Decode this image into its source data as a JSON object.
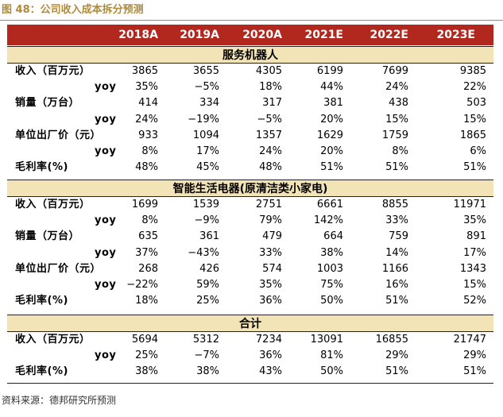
{
  "title": "图 48：公司收入成本拆分预测",
  "columns": [
    "2018A",
    "2019A",
    "2020A",
    "2021E",
    "2022E",
    "2023E"
  ],
  "sections": [
    {
      "name": "服务机器人",
      "rows": [
        {
          "label": "收入（百万元）",
          "sub": false,
          "values": [
            "3865",
            "3655",
            "4305",
            "6199",
            "7699",
            "9385"
          ]
        },
        {
          "label": "yoy",
          "sub": true,
          "values": [
            "35%",
            "−5%",
            "18%",
            "44%",
            "24%",
            "22%"
          ]
        },
        {
          "label": "销量（万台）",
          "sub": false,
          "values": [
            "414",
            "334",
            "317",
            "381",
            "438",
            "503"
          ]
        },
        {
          "label": "yoy",
          "sub": true,
          "values": [
            "24%",
            "−19%",
            "−5%",
            "20%",
            "15%",
            "15%"
          ]
        },
        {
          "label": "单位出厂价（元）",
          "sub": false,
          "values": [
            "933",
            "1094",
            "1357",
            "1629",
            "1759",
            "1865"
          ]
        },
        {
          "label": "yoy",
          "sub": true,
          "values": [
            "8%",
            "17%",
            "24%",
            "20%",
            "8%",
            "6%"
          ]
        },
        {
          "label": "毛利率(%)",
          "sub": false,
          "values": [
            "48%",
            "45%",
            "48%",
            "51%",
            "51%",
            "51%"
          ]
        }
      ]
    },
    {
      "name": "智能生活电器(原清洁类小家电)",
      "rows": [
        {
          "label": "收入（百万元）",
          "sub": false,
          "values": [
            "1699",
            "1539",
            "2751",
            "6661",
            "8855",
            "11971"
          ]
        },
        {
          "label": "yoy",
          "sub": true,
          "values": [
            "8%",
            "−9%",
            "79%",
            "142%",
            "33%",
            "35%"
          ]
        },
        {
          "label": "销量（万台）",
          "sub": false,
          "values": [
            "635",
            "361",
            "479",
            "664",
            "759",
            "891"
          ]
        },
        {
          "label": "yoy",
          "sub": true,
          "values": [
            "37%",
            "−43%",
            "33%",
            "38%",
            "14%",
            "17%"
          ]
        },
        {
          "label": "单位出厂价（元）",
          "sub": false,
          "values": [
            "268",
            "426",
            "574",
            "1003",
            "1166",
            "1343"
          ]
        },
        {
          "label": "yoy",
          "sub": true,
          "values": [
            "−22%",
            "59%",
            "35%",
            "75%",
            "16%",
            "15%"
          ]
        },
        {
          "label": "毛利率(%)",
          "sub": false,
          "values": [
            "18%",
            "25%",
            "36%",
            "50%",
            "51%",
            "52%"
          ]
        }
      ]
    },
    {
      "name": "合计",
      "rows": [
        {
          "label": "收入（百万元）",
          "sub": false,
          "values": [
            "5694",
            "5312",
            "7234",
            "13091",
            "16855",
            "21747"
          ]
        },
        {
          "label": "yoy",
          "sub": true,
          "values": [
            "25%",
            "−7%",
            "36%",
            "81%",
            "29%",
            "29%"
          ]
        },
        {
          "label": "毛利率(%)",
          "sub": false,
          "values": [
            "38%",
            "38%",
            "43%",
            "50%",
            "51%",
            "51%"
          ]
        }
      ]
    }
  ],
  "source": "资料来源：德邦研究所预测"
}
